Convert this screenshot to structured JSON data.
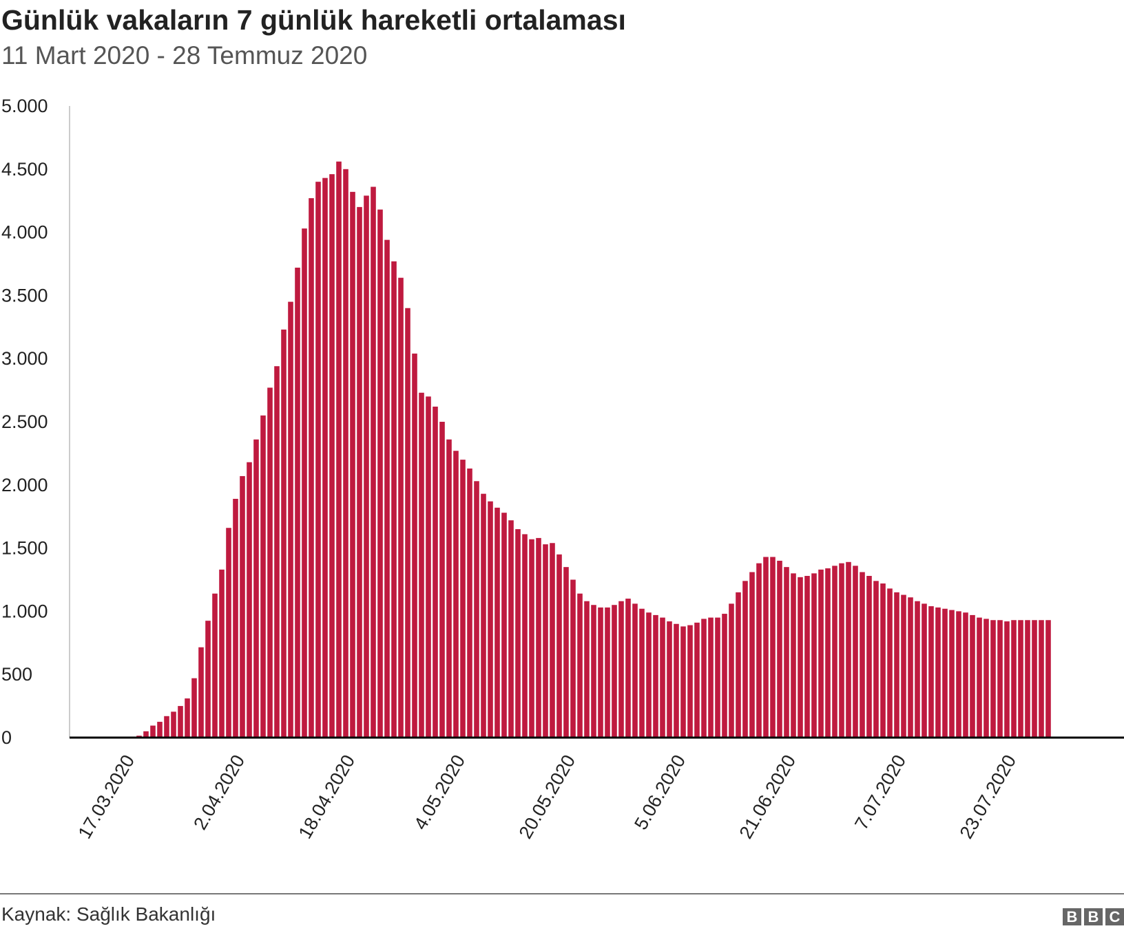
{
  "header": {
    "title": "Günlük vakaların 7 günlük hareketli ortalaması",
    "subtitle": "11 Mart 2020 - 28 Temmuz 2020"
  },
  "footer": {
    "source": "Kaynak: Sağlık Bakanlığı",
    "logo": "BBC"
  },
  "colors": {
    "bar": "#bf1a3f",
    "axis": "#000000"
  },
  "chart_data": {
    "type": "bar",
    "title": "Günlük vakaların 7 günlük hareketli ortalaması",
    "subtitle": "11 Mart 2020 - 28 Temmuz 2020",
    "xlabel": "",
    "ylabel": "",
    "ylim": [
      0,
      5000
    ],
    "yticks": [
      0,
      500,
      1000,
      1500,
      2000,
      2500,
      3000,
      3500,
      4000,
      4500,
      5000
    ],
    "ytick_labels": [
      "0",
      "500",
      "1.000",
      "1.500",
      "2.000",
      "2.500",
      "3.000",
      "3.500",
      "4.000",
      "4.500",
      "5.000"
    ],
    "start_date": "11.03.2020",
    "end_date": "28.07.2020",
    "xtick_indices": [
      6,
      22,
      38,
      54,
      70,
      86,
      102,
      118,
      134
    ],
    "xtick_labels": [
      "17.03.2020",
      "2.04.2020",
      "18.04.2020",
      "4.05.2020",
      "20.05.2020",
      "5.06.2020",
      "21.06.2020",
      "7.07.2020",
      "23.07.2020"
    ],
    "grid": false,
    "values": [
      0,
      0,
      0,
      0,
      0,
      0,
      7,
      15,
      50,
      95,
      125,
      170,
      205,
      250,
      310,
      470,
      715,
      925,
      1140,
      1330,
      1660,
      1890,
      2070,
      2180,
      2360,
      2550,
      2770,
      2940,
      3230,
      3450,
      3720,
      4030,
      4270,
      4400,
      4430,
      4460,
      4560,
      4500,
      4320,
      4200,
      4290,
      4360,
      4180,
      3940,
      3770,
      3640,
      3400,
      3040,
      2730,
      2700,
      2620,
      2500,
      2360,
      2270,
      2200,
      2130,
      2030,
      1930,
      1870,
      1820,
      1780,
      1720,
      1650,
      1610,
      1570,
      1580,
      1530,
      1540,
      1450,
      1350,
      1250,
      1140,
      1080,
      1050,
      1030,
      1030,
      1050,
      1080,
      1100,
      1060,
      1020,
      990,
      970,
      950,
      920,
      900,
      880,
      890,
      910,
      940,
      950,
      950,
      980,
      1060,
      1150,
      1240,
      1310,
      1380,
      1430,
      1430,
      1400,
      1350,
      1300,
      1270,
      1280,
      1300,
      1330,
      1340,
      1360,
      1380,
      1390,
      1360,
      1310,
      1280,
      1240,
      1220,
      1180,
      1150,
      1130,
      1110,
      1080,
      1060,
      1040,
      1030,
      1020,
      1010,
      1000,
      990,
      970,
      950,
      940,
      930,
      930,
      920,
      930,
      930,
      930,
      930,
      930,
      930
    ]
  }
}
